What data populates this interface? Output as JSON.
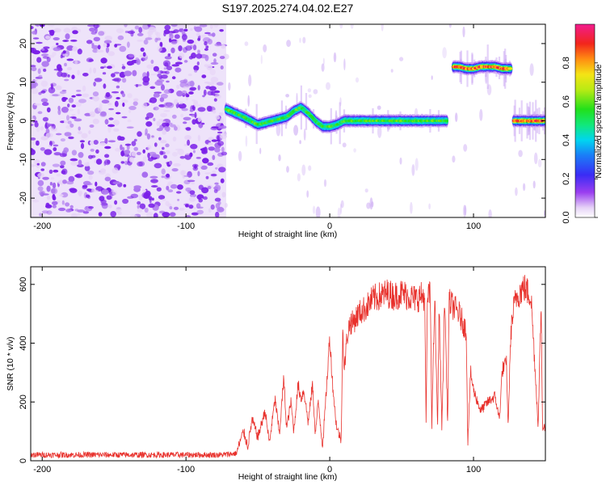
{
  "title": "S197.2025.274.04.02.E27",
  "colors": {
    "snr_line": "#e8312c",
    "axis": "#000000",
    "noise": "#7a1fe8",
    "noise_light": "#d9c2f5"
  },
  "chart_data": [
    {
      "type": "heatmap",
      "name": "spectrogram",
      "xlabel": "Height of straight line (km)",
      "ylabel": "Frequency (Hz)",
      "xlim": [
        -208,
        150
      ],
      "ylim": [
        -25,
        25
      ],
      "xticks": [
        -200,
        -100,
        0,
        100
      ],
      "yticks": [
        20,
        10,
        0,
        -10,
        -20
      ],
      "colorbar": {
        "label": "Normalized spectral amplitude",
        "range": [
          0.0,
          1.0
        ],
        "ticks": [
          0.0,
          0.2,
          0.4,
          0.6,
          0.8
        ]
      },
      "noise_region_x": [
        -208,
        -72
      ],
      "tracks": [
        {
          "x": [
            -72,
            -60,
            -50,
            -40,
            -30,
            -25,
            -20,
            -15,
            -10,
            -5,
            0,
            5,
            10,
            20,
            40,
            60,
            70,
            82
          ],
          "y": [
            3,
            1,
            -1,
            0,
            1,
            2.5,
            3.5,
            2,
            0,
            -1.5,
            -1.5,
            -1,
            0,
            0,
            0,
            0,
            0,
            0
          ],
          "amplitude": 0.55
        },
        {
          "x": [
            86,
            90,
            95,
            100,
            105,
            110,
            115,
            120,
            126
          ],
          "y": [
            14,
            14,
            13.5,
            13.5,
            14,
            14,
            14,
            13.5,
            13.5
          ],
          "amplitude": 0.85
        },
        {
          "x": [
            128,
            135,
            140,
            150
          ],
          "y": [
            0,
            0,
            0,
            0
          ],
          "amplitude": 0.85
        }
      ]
    },
    {
      "type": "line",
      "name": "snr",
      "xlabel": "Height of straight line (km)",
      "ylabel": "SNR (10 * v/v)",
      "xlim": [
        -208,
        150
      ],
      "ylim": [
        0,
        660
      ],
      "xticks": [
        -200,
        -100,
        0,
        100
      ],
      "yticks": [
        600,
        400,
        200,
        0
      ],
      "series": [
        {
          "name": "SNR",
          "x": [
            -208,
            -150,
            -100,
            -75,
            -65,
            -60,
            -57,
            -54,
            -50,
            -45,
            -42,
            -38,
            -35,
            -32,
            -30,
            -27,
            -25,
            -22,
            -20,
            -18,
            -15,
            -12,
            -10,
            -8,
            -5,
            -3,
            0,
            2,
            4,
            5,
            8,
            9,
            10,
            12,
            14,
            16,
            20,
            25,
            30,
            40,
            45,
            50,
            55,
            60,
            63,
            66,
            67,
            68,
            70,
            71,
            73,
            75,
            76,
            78,
            80,
            82,
            83,
            85,
            90,
            95,
            96,
            98,
            100,
            105,
            110,
            115,
            118,
            120,
            123,
            124,
            126,
            128,
            130,
            135,
            140,
            145,
            147,
            148,
            150
          ],
          "y": [
            20,
            20,
            20,
            20,
            25,
            100,
            50,
            140,
            80,
            170,
            60,
            210,
            90,
            280,
            110,
            200,
            100,
            260,
            210,
            240,
            130,
            260,
            90,
            200,
            50,
            190,
            420,
            260,
            150,
            110,
            70,
            460,
            300,
            420,
            470,
            470,
            500,
            520,
            550,
            570,
            560,
            570,
            560,
            550,
            560,
            560,
            130,
            570,
            560,
            120,
            560,
            110,
            540,
            110,
            560,
            120,
            540,
            530,
            500,
            440,
            60,
            300,
            240,
            170,
            200,
            220,
            140,
            310,
            330,
            110,
            440,
            520,
            560,
            590,
            560,
            120,
            540,
            120,
            110
          ]
        }
      ]
    }
  ]
}
